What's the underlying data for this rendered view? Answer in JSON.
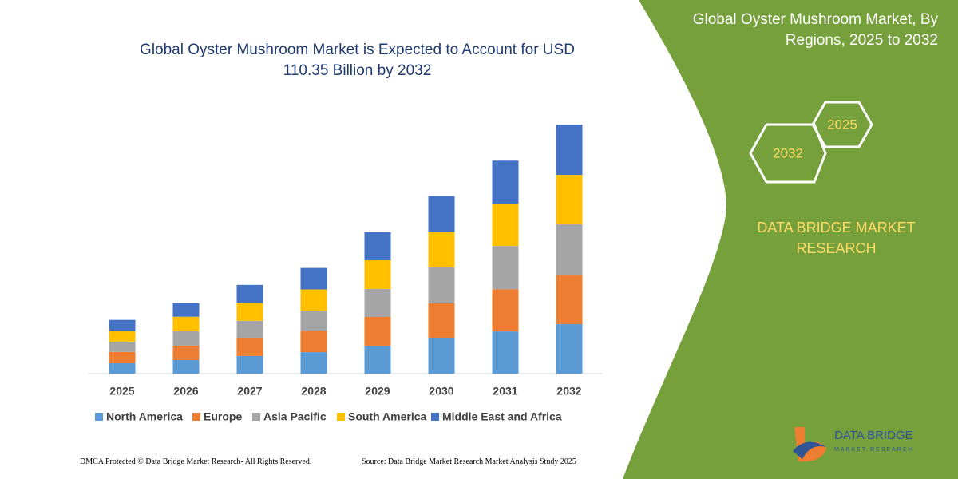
{
  "chart_data": {
    "type": "stacked_bar",
    "title": "Global Oyster Mushroom Market is Expected to Account for USD 110.35 Billion by 2032",
    "categories": [
      "2025",
      "2026",
      "2027",
      "2028",
      "2029",
      "2030",
      "2031",
      "2032"
    ],
    "series": [
      {
        "name": "North America",
        "color": "#5b9bd5",
        "values": [
          4.6,
          6.0,
          7.8,
          9.5,
          12.4,
          15.6,
          18.7,
          21.9
        ]
      },
      {
        "name": "Europe",
        "color": "#ed7d31",
        "values": [
          5.0,
          6.4,
          7.8,
          9.5,
          12.7,
          15.6,
          18.7,
          21.9
        ]
      },
      {
        "name": "Asia Pacific",
        "color": "#a5a5a5",
        "values": [
          4.6,
          6.4,
          7.8,
          8.8,
          12.4,
          15.9,
          19.1,
          22.3
        ]
      },
      {
        "name": "South America",
        "color": "#ffc000",
        "values": [
          4.6,
          6.4,
          7.8,
          9.5,
          12.7,
          15.6,
          18.7,
          21.9
        ]
      },
      {
        "name": "Middle East and Africa",
        "color": "#4472c4",
        "values": [
          5.0,
          6.0,
          8.1,
          9.5,
          12.4,
          15.9,
          19.1,
          22.3
        ]
      }
    ],
    "legend": "bottom"
  },
  "panel": {
    "title": "Global Oyster Mushroom Market, By Regions, 2025 to 2032",
    "hexagons": [
      "2025",
      "2032"
    ],
    "brand": "DATA BRIDGE MARKET RESEARCH"
  },
  "logo": {
    "name": "DATA BRIDGE",
    "tagline": "MARKET RESEARCH"
  },
  "footer": {
    "left": "DMCA Protected © Data Bridge Market Research-  All Rights Reserved.",
    "right": "Source: Data Bridge Market Research  Market Analysis Study 2025"
  }
}
